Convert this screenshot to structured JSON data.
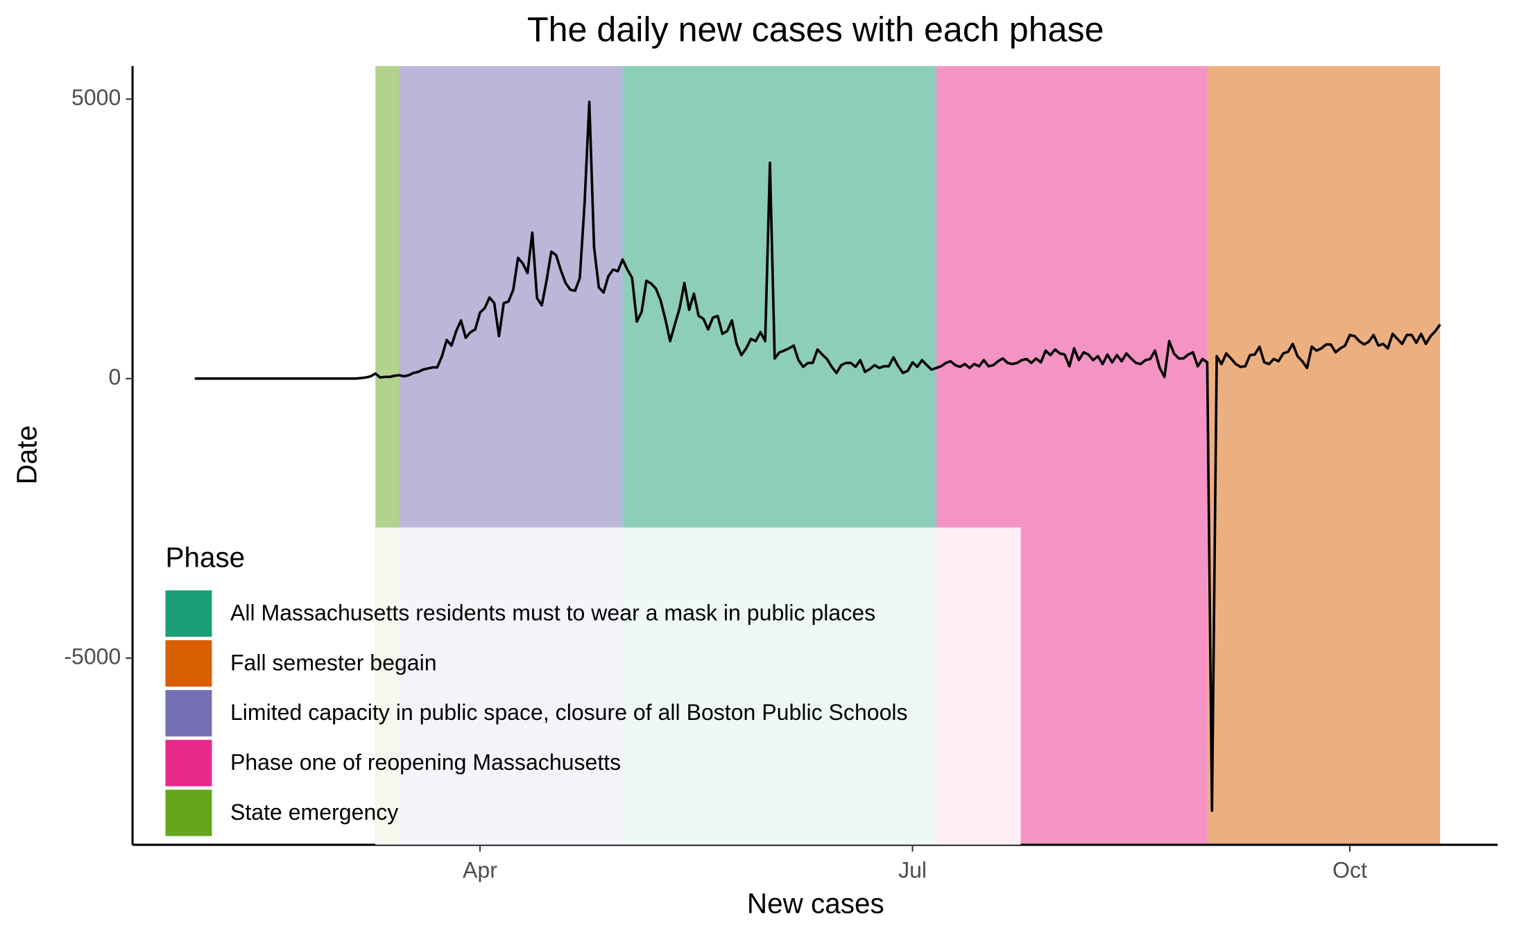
{
  "chart_data": {
    "type": "line",
    "title": "The daily new cases with each phase",
    "x_label": "New cases",
    "y_label": "Date",
    "legend_title": "Phase",
    "legend_position": "bottom-left",
    "color": "#000000",
    "x": [
      32,
      66,
      67,
      68,
      69,
      70,
      71,
      72,
      73,
      74,
      75,
      76,
      77,
      78,
      79,
      80,
      81,
      82,
      83,
      84,
      85,
      86,
      87,
      88,
      89,
      90,
      91,
      92,
      93,
      94,
      95,
      96,
      97,
      98,
      99,
      100,
      101,
      102,
      103,
      104,
      105,
      106,
      107,
      108,
      109,
      110,
      111,
      112,
      113,
      114,
      115,
      116,
      117,
      118,
      119,
      120,
      121,
      122,
      123,
      124,
      125,
      126,
      127,
      128,
      129,
      130,
      131,
      132,
      133,
      134,
      135,
      136,
      137,
      138,
      139,
      140,
      141,
      142,
      143,
      144,
      145,
      146,
      147,
      148,
      149,
      150,
      151,
      152,
      153,
      154,
      155,
      156,
      157,
      158,
      159,
      160,
      161,
      162,
      163,
      164,
      165,
      166,
      167,
      168,
      169,
      170,
      171,
      172,
      173,
      174,
      175,
      176,
      177,
      178,
      179,
      180,
      181,
      182,
      183,
      184,
      185,
      186,
      187,
      188,
      189,
      190,
      191,
      192,
      193,
      194,
      195,
      196,
      197,
      198,
      199,
      200,
      201,
      202,
      203,
      204,
      205,
      206,
      207,
      208,
      209,
      210,
      211,
      212,
      213,
      214,
      215,
      216,
      217,
      218,
      219,
      220,
      221,
      222,
      223,
      224,
      225,
      226,
      227,
      228,
      229,
      230,
      231,
      232,
      233,
      234,
      235,
      236,
      237,
      238,
      239,
      240,
      241,
      242,
      243,
      244,
      245,
      246,
      247,
      248,
      249,
      250,
      251,
      252,
      253,
      254,
      255,
      256,
      257,
      258,
      259,
      260,
      261,
      262,
      263,
      264,
      265,
      266,
      267,
      268,
      269,
      270,
      271,
      272,
      273,
      274,
      275,
      276,
      277,
      278,
      279,
      280,
      281,
      282,
      283,
      284,
      285,
      286,
      287,
      288,
      289,
      290,
      291,
      292,
      293,
      294
    ],
    "values": [
      0,
      0,
      10,
      20,
      40,
      90,
      20,
      30,
      30,
      50,
      60,
      40,
      60,
      100,
      120,
      160,
      180,
      200,
      200,
      400,
      690,
      590,
      850,
      1040,
      730,
      830,
      880,
      1180,
      1260,
      1450,
      1350,
      760,
      1350,
      1380,
      1590,
      2160,
      2060,
      1890,
      2610,
      1440,
      1310,
      1750,
      2270,
      2210,
      1940,
      1710,
      1590,
      1570,
      1800,
      3130,
      4950,
      2350,
      1630,
      1540,
      1830,
      1950,
      1920,
      2130,
      1950,
      1800,
      1020,
      1190,
      1750,
      1700,
      1610,
      1400,
      1060,
      670,
      970,
      1260,
      1710,
      1230,
      1520,
      1120,
      1070,
      880,
      1090,
      1120,
      800,
      850,
      1040,
      620,
      420,
      540,
      710,
      670,
      830,
      670,
      3860,
      360,
      470,
      500,
      540,
      590,
      330,
      210,
      280,
      280,
      520,
      430,
      350,
      210,
      100,
      240,
      280,
      280,
      210,
      330,
      120,
      170,
      240,
      190,
      220,
      220,
      380,
      220,
      100,
      140,
      290,
      210,
      330,
      240,
      160,
      190,
      220,
      280,
      310,
      240,
      210,
      260,
      190,
      260,
      220,
      330,
      220,
      240,
      310,
      360,
      280,
      260,
      280,
      330,
      350,
      280,
      360,
      290,
      500,
      420,
      520,
      450,
      430,
      220,
      540,
      330,
      470,
      430,
      330,
      400,
      260,
      430,
      290,
      420,
      310,
      450,
      360,
      280,
      260,
      330,
      350,
      500,
      190,
      30,
      670,
      450,
      360,
      360,
      430,
      470,
      220,
      350,
      290,
      -7730,
      400,
      260,
      450,
      360,
      260,
      210,
      220,
      420,
      430,
      570,
      290,
      260,
      350,
      310,
      450,
      480,
      620,
      400,
      310,
      190,
      570,
      500,
      540,
      610,
      610,
      470,
      540,
      590,
      780,
      760,
      670,
      610,
      660,
      780,
      590,
      620,
      540,
      800,
      710,
      620,
      780,
      780,
      640,
      800,
      620,
      760,
      850,
      970
    ],
    "phases": [
      {
        "name": "All Massachusetts residents must to wear a mask in public places",
        "color": "#1B9E77",
        "start": 122,
        "end": 188
      },
      {
        "name": "Fall semester begain",
        "color": "#D95F02",
        "start": 245,
        "end": 294
      },
      {
        "name": "Limited capacity in public space, closure of all Boston Public Schools",
        "color": "#7570B3",
        "start": 75,
        "end": 122
      },
      {
        "name": "Phase one of reopening Massachusetts",
        "color": "#E7298A",
        "start": 188,
        "end": 245
      },
      {
        "name": "State emergency",
        "color": "#66A61E",
        "start": 70,
        "end": 75
      }
    ],
    "xlim": [
      18.9,
      306.1
    ],
    "xticks": [
      {
        "value": 92,
        "label": "Apr"
      },
      {
        "value": 183,
        "label": "Jul"
      },
      {
        "value": 275,
        "label": "Oct"
      }
    ],
    "ylim": [
      -8340,
      5590
    ],
    "yticks": [
      -5000,
      0,
      5000
    ]
  }
}
